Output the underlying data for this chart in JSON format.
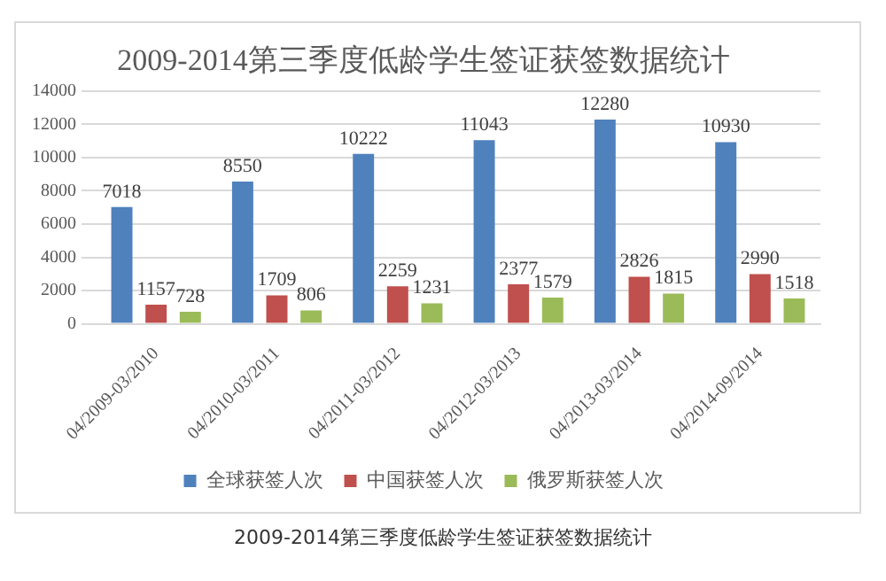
{
  "chart_data": {
    "type": "bar",
    "title": "2009-2014第三季度低龄学生签证获签数据统计",
    "categories": [
      "04/2009-03/2010",
      "04/2010-03/2011",
      "04/2011-03/2012",
      "04/2012-03/2013",
      "04/2013-03/2014",
      "04/2014-09/2014"
    ],
    "series": [
      {
        "name": "全球获签人次",
        "color": "#4f81bd",
        "values": [
          7018,
          8550,
          10222,
          11043,
          12280,
          10930
        ]
      },
      {
        "name": "中国获签人次",
        "color": "#c0504d",
        "values": [
          1157,
          1709,
          2259,
          2377,
          2826,
          2990
        ]
      },
      {
        "name": "俄罗斯获签人次",
        "color": "#9bbb59",
        "values": [
          728,
          806,
          1231,
          1579,
          1815,
          1518
        ]
      }
    ],
    "ylim": [
      0,
      14000
    ],
    "yticks": [
      0,
      2000,
      4000,
      6000,
      8000,
      10000,
      12000,
      14000
    ],
    "grid": "y",
    "legend": "bottom",
    "data_labels": true,
    "annotations": [
      "2009-2014第三季度低龄学生签证获签数据统计"
    ]
  }
}
